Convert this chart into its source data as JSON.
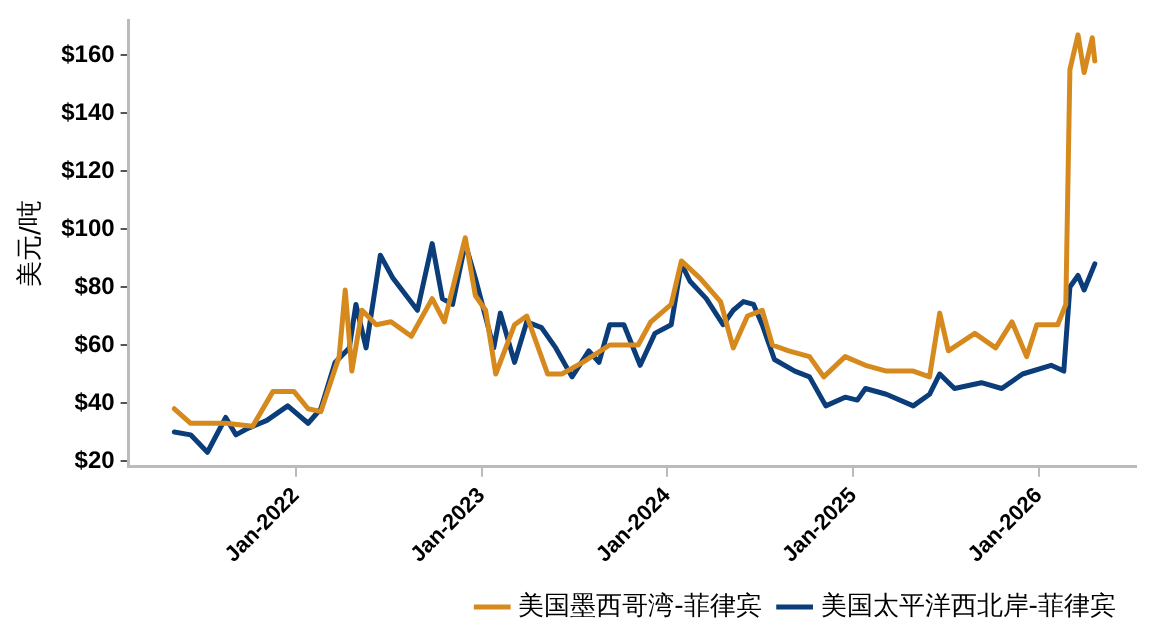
{
  "chart_data": {
    "type": "line",
    "ylabel": "美元/吨",
    "xlim": [
      "2021-02-06",
      "2026-07-11"
    ],
    "ylim": [
      18,
      172
    ],
    "xticks": [
      {
        "value": "2022-01-01",
        "label": "Jan-2022"
      },
      {
        "value": "2023-01-01",
        "label": "Jan-2023"
      },
      {
        "value": "2024-01-01",
        "label": "Jan-2024"
      },
      {
        "value": "2025-01-01",
        "label": "Jan-2025"
      },
      {
        "value": "2026-01-01",
        "label": "Jan-2026"
      }
    ],
    "yticks": [
      {
        "value": 20,
        "label": "$20"
      },
      {
        "value": 40,
        "label": "$40"
      },
      {
        "value": 60,
        "label": "$60"
      },
      {
        "value": 80,
        "label": "$80"
      },
      {
        "value": 100,
        "label": "$100"
      },
      {
        "value": 120,
        "label": "$120"
      },
      {
        "value": 140,
        "label": "$140"
      },
      {
        "value": 160,
        "label": "$160"
      }
    ],
    "grid": false,
    "legend": "bottom",
    "marker": "none",
    "line_style": "solid",
    "series": [
      {
        "name": "美国墨西哥湾-菲律宾",
        "color": "#d68a1e",
        "x": [
          "2021-05-07",
          "2021-06-08",
          "2021-08-16",
          "2021-10-08",
          "2021-11-17",
          "2021-12-28",
          "2022-01-25",
          "2022-02-19",
          "2022-03-27",
          "2022-04-08",
          "2022-04-21",
          "2022-05-11",
          "2022-06-08",
          "2022-07-07",
          "2022-08-16",
          "2022-09-26",
          "2022-10-20",
          "2022-11-30",
          "2022-12-20",
          "2023-01-09",
          "2023-01-29",
          "2023-03-07",
          "2023-03-31",
          "2023-05-11",
          "2023-06-08",
          "2023-07-19",
          "2023-09-10",
          "2023-11-05",
          "2023-11-30",
          "2024-01-09",
          "2024-01-29",
          "2024-03-06",
          "2024-04-15",
          "2024-05-10",
          "2024-06-07",
          "2024-07-06",
          "2024-07-26",
          "2024-08-27",
          "2024-10-07",
          "2024-11-04",
          "2024-12-16",
          "2025-01-25",
          "2025-03-07",
          "2025-04-29",
          "2025-05-31",
          "2025-06-20",
          "2025-07-07",
          "2025-08-28",
          "2025-10-08",
          "2025-11-09",
          "2025-12-08",
          "2025-12-28",
          "2026-02-07",
          "2026-02-23",
          "2026-03-03",
          "2026-03-19",
          "2026-03-31",
          "2026-04-16",
          "2026-04-21"
        ],
        "values": [
          38,
          33,
          33,
          32,
          44,
          44,
          38,
          37,
          56,
          79,
          51,
          72,
          67,
          68,
          63,
          76,
          68,
          97,
          77,
          72,
          50,
          67,
          70,
          50,
          50,
          54,
          60,
          60,
          68,
          74,
          89,
          83,
          75,
          59,
          70,
          72,
          60,
          58,
          56,
          49,
          56,
          53,
          51,
          51,
          49,
          71,
          58,
          64,
          59,
          68,
          56,
          67,
          67,
          74,
          155,
          167,
          154,
          166,
          158
        ]
      },
      {
        "name": "美国太平洋西北岸-菲律宾",
        "color": "#0a3d7a",
        "x": [
          "2021-05-07",
          "2021-06-08",
          "2021-07-11",
          "2021-08-16",
          "2021-09-05",
          "2021-09-26",
          "2021-11-05",
          "2021-12-16",
          "2022-01-25",
          "2022-02-19",
          "2022-03-19",
          "2022-04-16",
          "2022-04-29",
          "2022-05-19",
          "2022-06-16",
          "2022-07-11",
          "2022-08-28",
          "2022-09-26",
          "2022-10-16",
          "2022-11-05",
          "2022-11-30",
          "2022-12-20",
          "2023-01-25",
          "2023-02-07",
          "2023-03-07",
          "2023-03-31",
          "2023-04-29",
          "2023-05-27",
          "2023-06-28",
          "2023-07-31",
          "2023-08-20",
          "2023-09-10",
          "2023-10-08",
          "2023-11-09",
          "2023-12-08",
          "2024-01-09",
          "2024-01-29",
          "2024-02-15",
          "2024-03-18",
          "2024-04-20",
          "2024-05-10",
          "2024-05-30",
          "2024-06-19",
          "2024-07-06",
          "2024-07-30",
          "2024-09-08",
          "2024-10-07",
          "2024-11-08",
          "2024-12-16",
          "2025-01-09",
          "2025-01-25",
          "2025-03-07",
          "2025-04-29",
          "2025-05-31",
          "2025-06-20",
          "2025-07-19",
          "2025-09-10",
          "2025-10-20",
          "2025-11-30",
          "2026-01-25",
          "2026-02-19",
          "2026-03-03",
          "2026-03-19",
          "2026-03-31",
          "2026-04-21"
        ],
        "values": [
          30,
          29,
          23,
          35,
          29,
          31,
          34,
          39,
          33,
          38,
          54,
          59,
          74,
          59,
          91,
          83,
          72,
          95,
          76,
          74,
          95,
          83,
          59,
          71,
          54,
          68,
          66,
          59,
          49,
          58,
          54,
          67,
          67,
          53,
          64,
          67,
          88,
          82,
          76,
          67,
          72,
          75,
          74,
          67,
          55,
          51,
          49,
          39,
          42,
          41,
          45,
          43,
          39,
          43,
          50,
          45,
          47,
          45,
          50,
          53,
          51,
          80,
          84,
          79,
          88
        ]
      }
    ]
  }
}
